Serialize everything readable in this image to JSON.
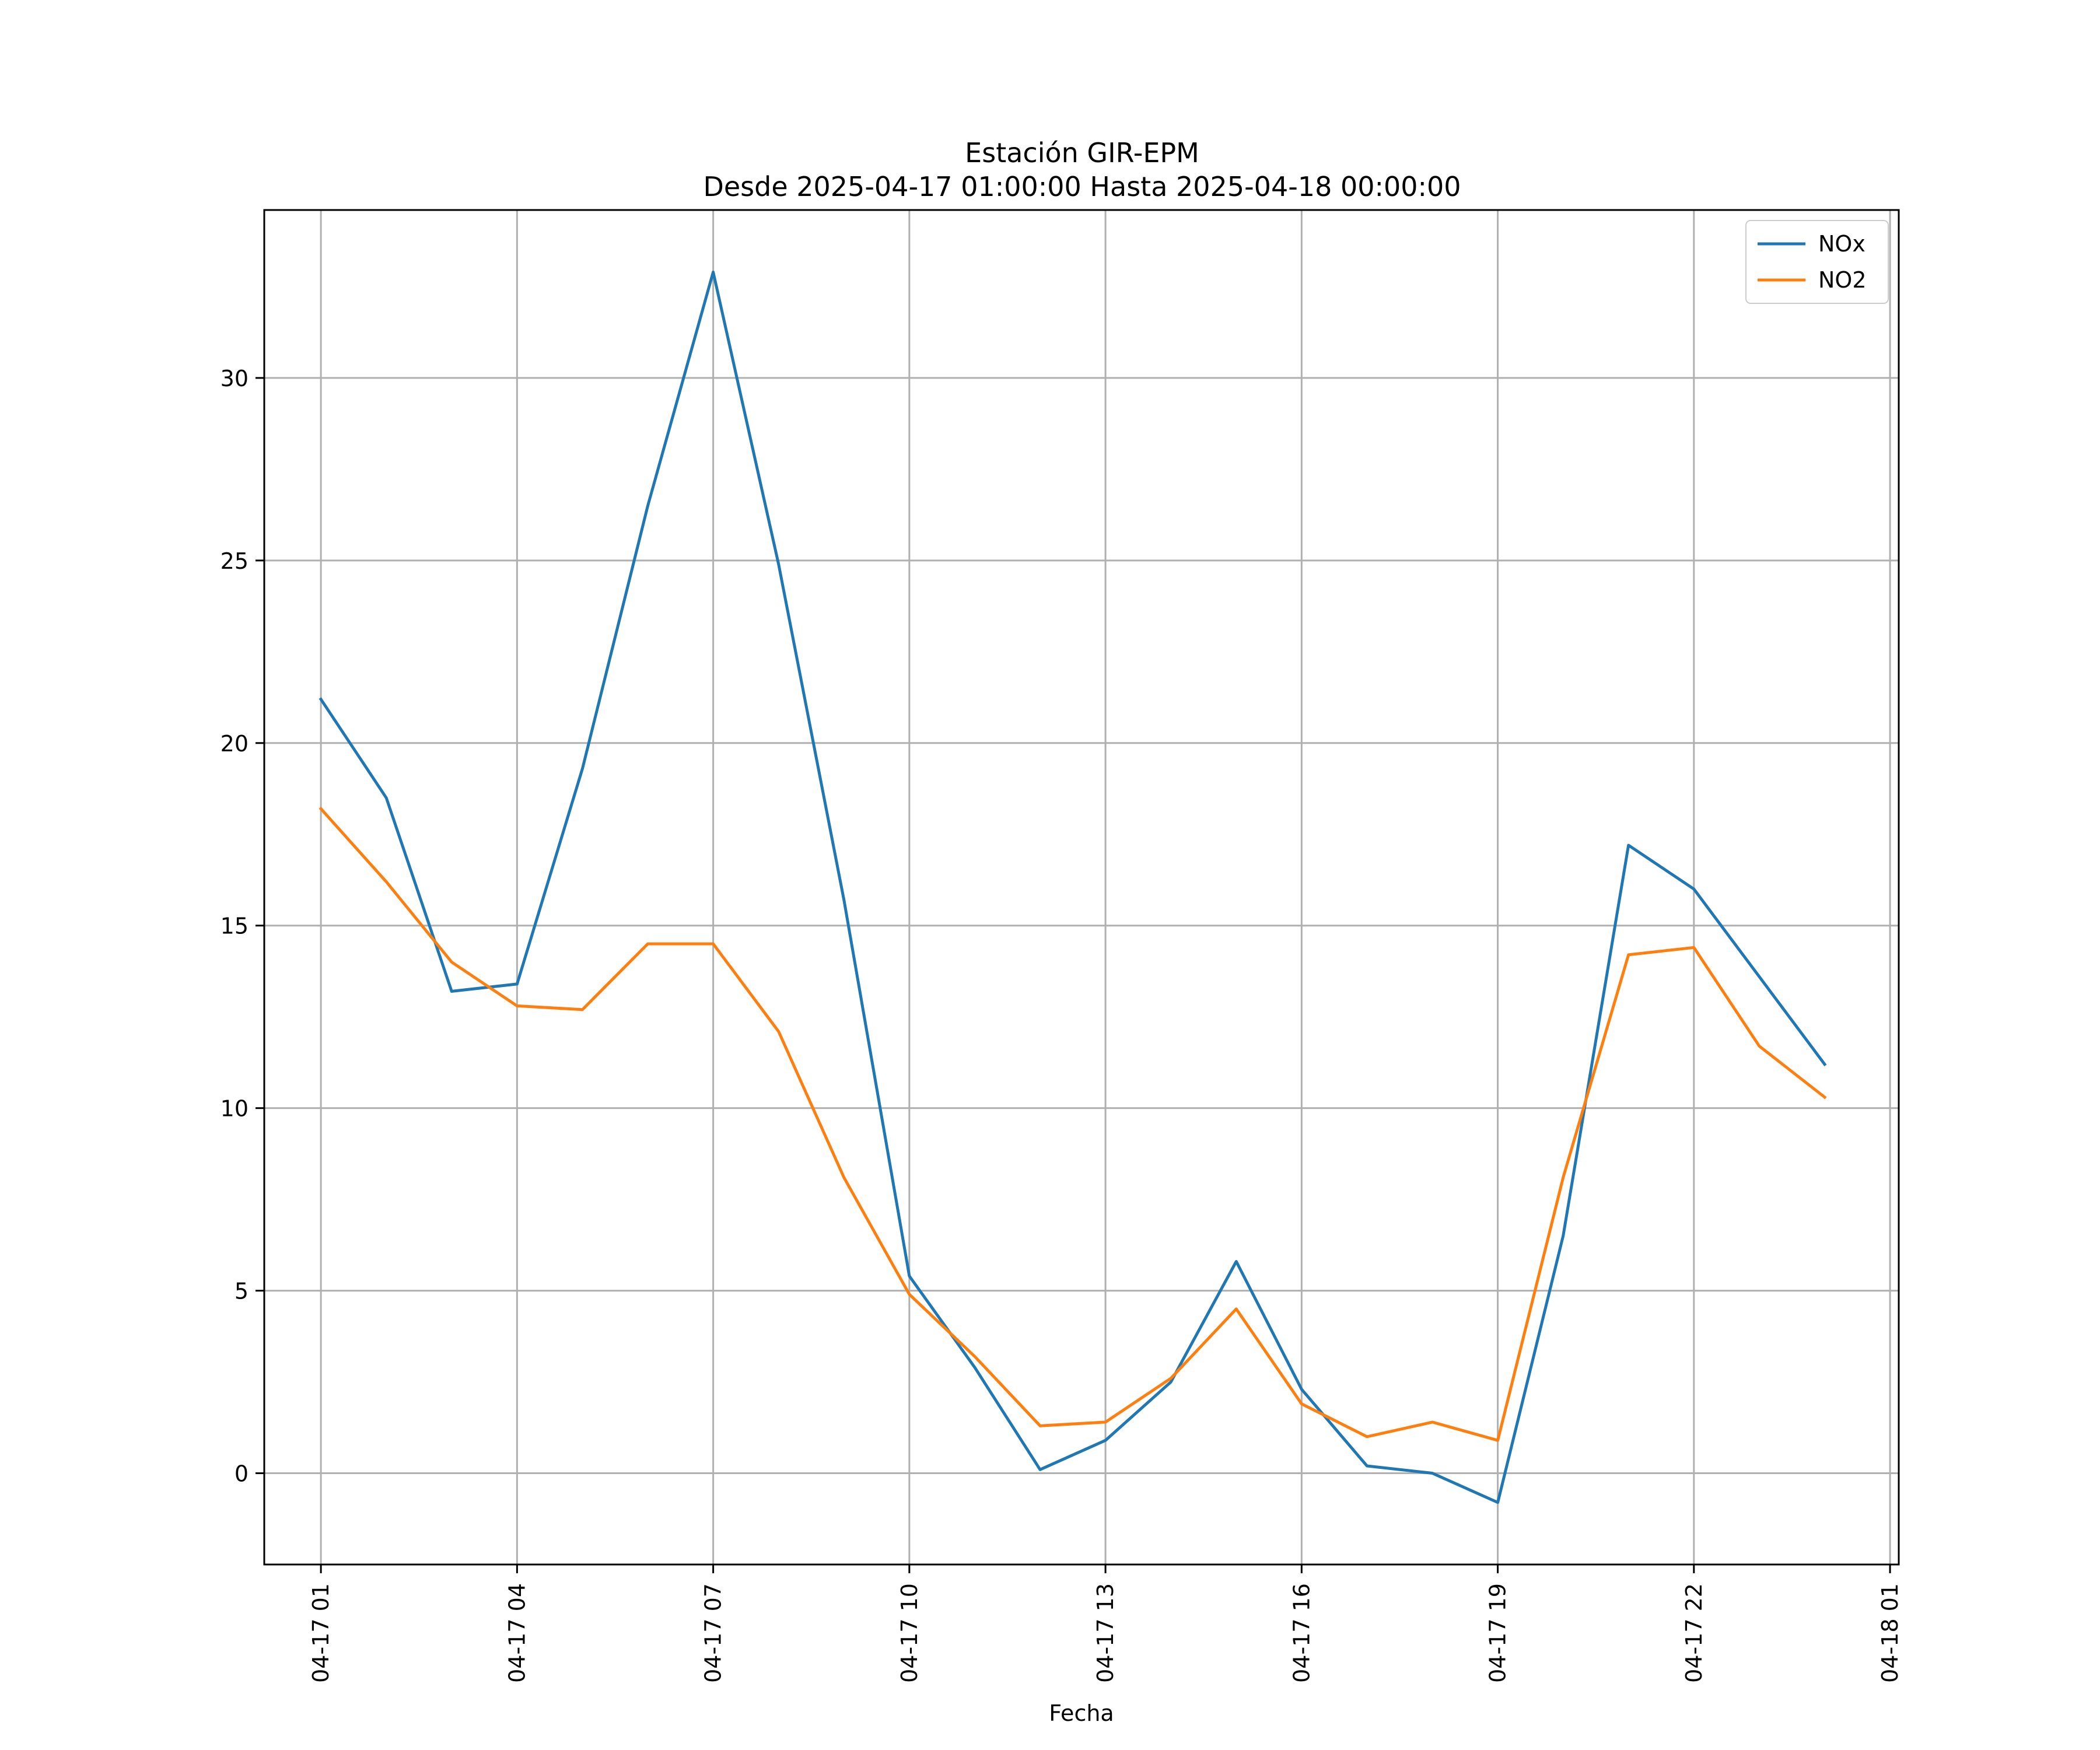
{
  "chart_data": {
    "type": "line",
    "title": "Estación GIR-EPM",
    "subtitle": "Desde 2025-04-17 01:00:00 Hasta 2025-04-18 00:00:00",
    "xlabel": "Fecha",
    "ylabel": "",
    "x": [
      "04-17 01",
      "04-17 02",
      "04-17 03",
      "04-17 04",
      "04-17 05",
      "04-17 06",
      "04-17 07",
      "04-17 08",
      "04-17 09",
      "04-17 10",
      "04-17 11",
      "04-17 12",
      "04-17 13",
      "04-17 14",
      "04-17 15",
      "04-17 16",
      "04-17 17",
      "04-17 18",
      "04-17 19",
      "04-17 20",
      "04-17 21",
      "04-17 22",
      "04-17 23",
      "04-18 00"
    ],
    "x_ticks": [
      "04-17 01",
      "04-17 04",
      "04-17 07",
      "04-17 10",
      "04-17 13",
      "04-17 16",
      "04-17 19",
      "04-17 22",
      "04-18 01"
    ],
    "y_ticks": [
      0,
      5,
      10,
      15,
      20,
      25,
      30
    ],
    "ylim": [
      -2.5,
      34.6
    ],
    "xlim": [
      "04-17 00:08",
      "04-18 01:08"
    ],
    "grid": true,
    "legend_position": "top-right",
    "series": [
      {
        "name": "NOx",
        "color": "#1f77b4",
        "values": [
          21.2,
          18.5,
          13.2,
          13.4,
          19.3,
          26.5,
          32.9,
          24.9,
          15.7,
          5.4,
          2.9,
          0.1,
          0.9,
          2.5,
          5.8,
          2.3,
          0.2,
          0.0,
          -0.8,
          6.5,
          17.2,
          16.0,
          13.6,
          11.2
        ]
      },
      {
        "name": "NO2",
        "color": "#ff7f0e",
        "values": [
          18.2,
          16.2,
          14.0,
          12.8,
          12.7,
          14.5,
          14.5,
          12.1,
          8.1,
          4.9,
          3.2,
          1.3,
          1.4,
          2.6,
          4.5,
          1.9,
          1.0,
          1.4,
          0.9,
          8.1,
          14.2,
          14.4,
          11.7,
          10.3
        ]
      }
    ]
  }
}
